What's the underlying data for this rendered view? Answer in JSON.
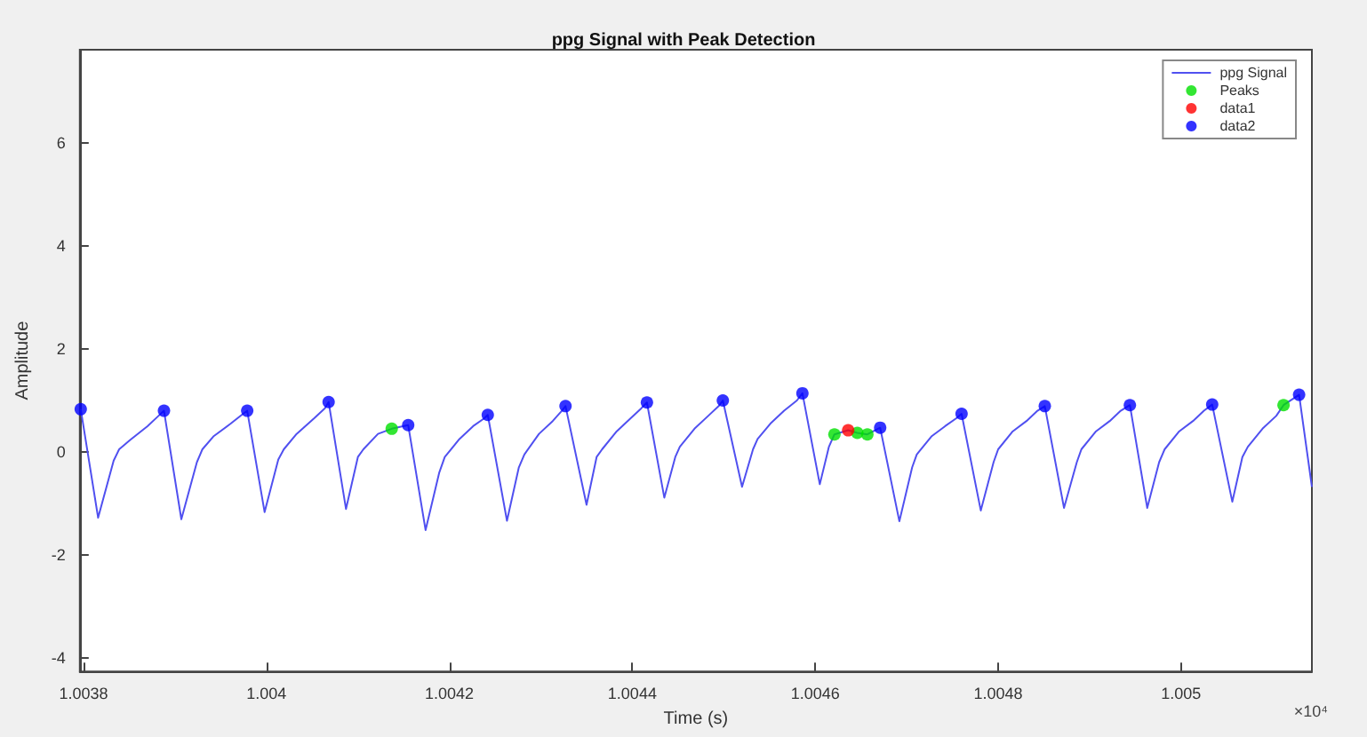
{
  "chart_data": {
    "type": "line",
    "title": "ppg Signal with Peak Detection",
    "xlabel": "Time (s)",
    "ylabel": "Amplitude",
    "annotations": [
      "×10⁴"
    ],
    "xlim": [
      1.003796,
      1.005143
    ],
    "xticks": [
      1.0038,
      1.004,
      1.0042,
      1.0044,
      1.0046,
      1.0048,
      1.005
    ],
    "ylim": [
      -4.27,
      7.82
    ],
    "yticks": [
      -4,
      -2,
      0,
      2,
      4,
      6
    ],
    "grid": false,
    "legend": "top right",
    "series": [
      {
        "name": "ppg Signal",
        "marker": "none",
        "line_style": "solid",
        "color": "#5050f0",
        "x": [
          1.003797,
          1.003816,
          1.003833,
          1.003839,
          1.003851,
          1.00387,
          1.003882,
          1.003888,
          1.003907,
          1.003924,
          1.00393,
          1.003942,
          1.003961,
          1.003973,
          1.003979,
          1.003998,
          1.004013,
          1.004019,
          1.004033,
          1.004052,
          1.004064,
          1.004068,
          1.004087,
          1.0041,
          1.004106,
          1.004122,
          1.004137,
          1.004155,
          1.004174,
          1.004189,
          1.004195,
          1.004211,
          1.004226,
          1.004238,
          1.004242,
          1.004263,
          1.004276,
          1.004282,
          1.004298,
          1.004313,
          1.004323,
          1.004327,
          1.00435,
          1.004361,
          1.004367,
          1.004383,
          1.004398,
          1.00441,
          1.004416,
          1.004435,
          1.004447,
          1.004452,
          1.004468,
          1.004483,
          1.004495,
          1.004499,
          1.00452,
          1.004532,
          1.004537,
          1.004551,
          1.004566,
          1.00458,
          1.004586,
          1.004605,
          1.004615,
          1.004621,
          1.004636,
          1.004646,
          1.004657,
          1.004671,
          1.004692,
          1.004706,
          1.004711,
          1.004727,
          1.004742,
          1.004754,
          1.00476,
          1.004781,
          1.004795,
          1.0048,
          1.004816,
          1.004831,
          1.004843,
          1.004851,
          1.004872,
          1.004886,
          1.004891,
          1.004907,
          1.004922,
          1.004934,
          1.004944,
          1.004963,
          1.004976,
          1.004982,
          1.004998,
          1.005013,
          1.005025,
          1.005034,
          1.005056,
          1.005067,
          1.005073,
          1.005089,
          1.005104,
          1.005112,
          1.005129,
          1.005143
        ],
        "values": [
          0.83,
          -1.28,
          -0.17,
          0.05,
          0.23,
          0.5,
          0.7,
          0.8,
          -1.31,
          -0.2,
          0.05,
          0.3,
          0.55,
          0.72,
          0.8,
          -1.17,
          -0.15,
          0.05,
          0.35,
          0.65,
          0.85,
          0.97,
          -1.11,
          -0.1,
          0.05,
          0.35,
          0.45,
          0.52,
          -1.52,
          -0.4,
          -0.1,
          0.25,
          0.5,
          0.65,
          0.72,
          -1.34,
          -0.3,
          -0.05,
          0.35,
          0.6,
          0.8,
          0.89,
          -1.03,
          -0.1,
          0.05,
          0.4,
          0.65,
          0.85,
          0.96,
          -0.89,
          -0.1,
          0.1,
          0.45,
          0.7,
          0.9,
          1.0,
          -0.68,
          0.05,
          0.25,
          0.55,
          0.8,
          1.0,
          1.14,
          -0.63,
          0.1,
          0.34,
          0.42,
          0.37,
          0.34,
          0.47,
          -1.35,
          -0.3,
          -0.05,
          0.3,
          0.5,
          0.65,
          0.74,
          -1.14,
          -0.2,
          0.05,
          0.4,
          0.6,
          0.8,
          0.89,
          -1.09,
          -0.2,
          0.05,
          0.4,
          0.6,
          0.8,
          0.91,
          -1.09,
          -0.2,
          0.05,
          0.4,
          0.6,
          0.8,
          0.92,
          -0.97,
          -0.1,
          0.1,
          0.45,
          0.7,
          0.91,
          1.11,
          -0.68
        ]
      },
      {
        "name": "Peaks",
        "type": "scatter",
        "marker": "circle",
        "color": "#00e000",
        "x": [
          1.004137,
          1.004621,
          1.004646,
          1.004657,
          1.005112
        ],
        "values": [
          0.45,
          0.34,
          0.37,
          0.34,
          0.91
        ]
      },
      {
        "name": "data1",
        "type": "scatter",
        "marker": "circle",
        "color": "#ff0000",
        "x": [
          1.004636
        ],
        "values": [
          0.42
        ]
      },
      {
        "name": "data2",
        "type": "scatter",
        "marker": "circle",
        "color": "#0000ff",
        "x": [
          1.003797,
          1.003888,
          1.003979,
          1.004068,
          1.004155,
          1.004242,
          1.004327,
          1.004416,
          1.004499,
          1.004586,
          1.004671,
          1.00476,
          1.004851,
          1.004944,
          1.005034,
          1.005129
        ],
        "values": [
          0.83,
          0.8,
          0.8,
          0.97,
          0.52,
          0.72,
          0.89,
          0.96,
          1.0,
          1.14,
          0.47,
          0.74,
          0.89,
          0.91,
          0.92,
          1.11
        ]
      }
    ]
  }
}
